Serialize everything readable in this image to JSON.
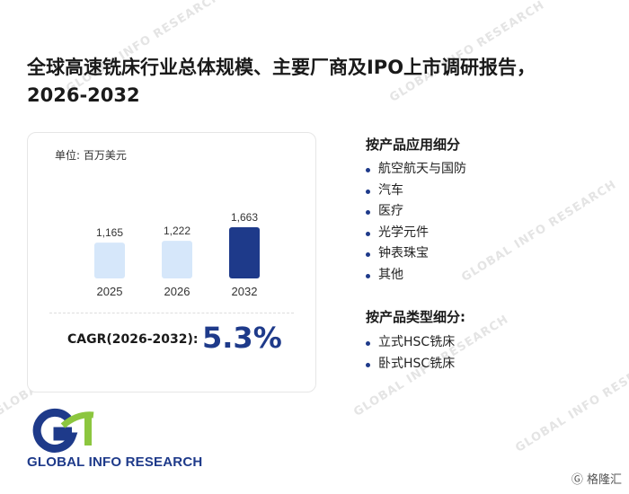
{
  "title": "全球高速铣床行业总体规模、主要厂商及IPO上市调研报告，2026-2032",
  "chart": {
    "unit_label": "单位: 百万美元",
    "cagr_label": "CAGR(2026-2032):",
    "cagr_value": "5.3%"
  },
  "chart_data": {
    "type": "bar",
    "categories": [
      "2025",
      "2026",
      "2032"
    ],
    "values": [
      1165,
      1222,
      1663
    ],
    "value_labels": [
      "1,165",
      "1,222",
      "1,663"
    ],
    "colors": [
      "#d6e7fa",
      "#d6e7fa",
      "#1e3a8a"
    ],
    "ylim": [
      0,
      1663
    ],
    "grid": false,
    "title": "",
    "xlabel": "",
    "ylabel": ""
  },
  "segments": {
    "application": {
      "title": "按产品应用细分",
      "items": [
        "航空航天与国防",
        "汽车",
        "医疗",
        "光学元件",
        "钟表珠宝",
        "其他"
      ]
    },
    "type": {
      "title": "按产品类型细分:",
      "items": [
        "立式HSC铣床",
        "卧式HSC铣床"
      ]
    }
  },
  "logo": {
    "text": "GLOBAL INFO RESEARCH",
    "watermark_text": "GLOBAL INFO RESEARCH"
  },
  "badge": {
    "text": "格隆汇"
  },
  "colors": {
    "accent": "#1e3a8a",
    "bar_light": "#d6e7fa",
    "logo_green": "#8cc63f"
  }
}
